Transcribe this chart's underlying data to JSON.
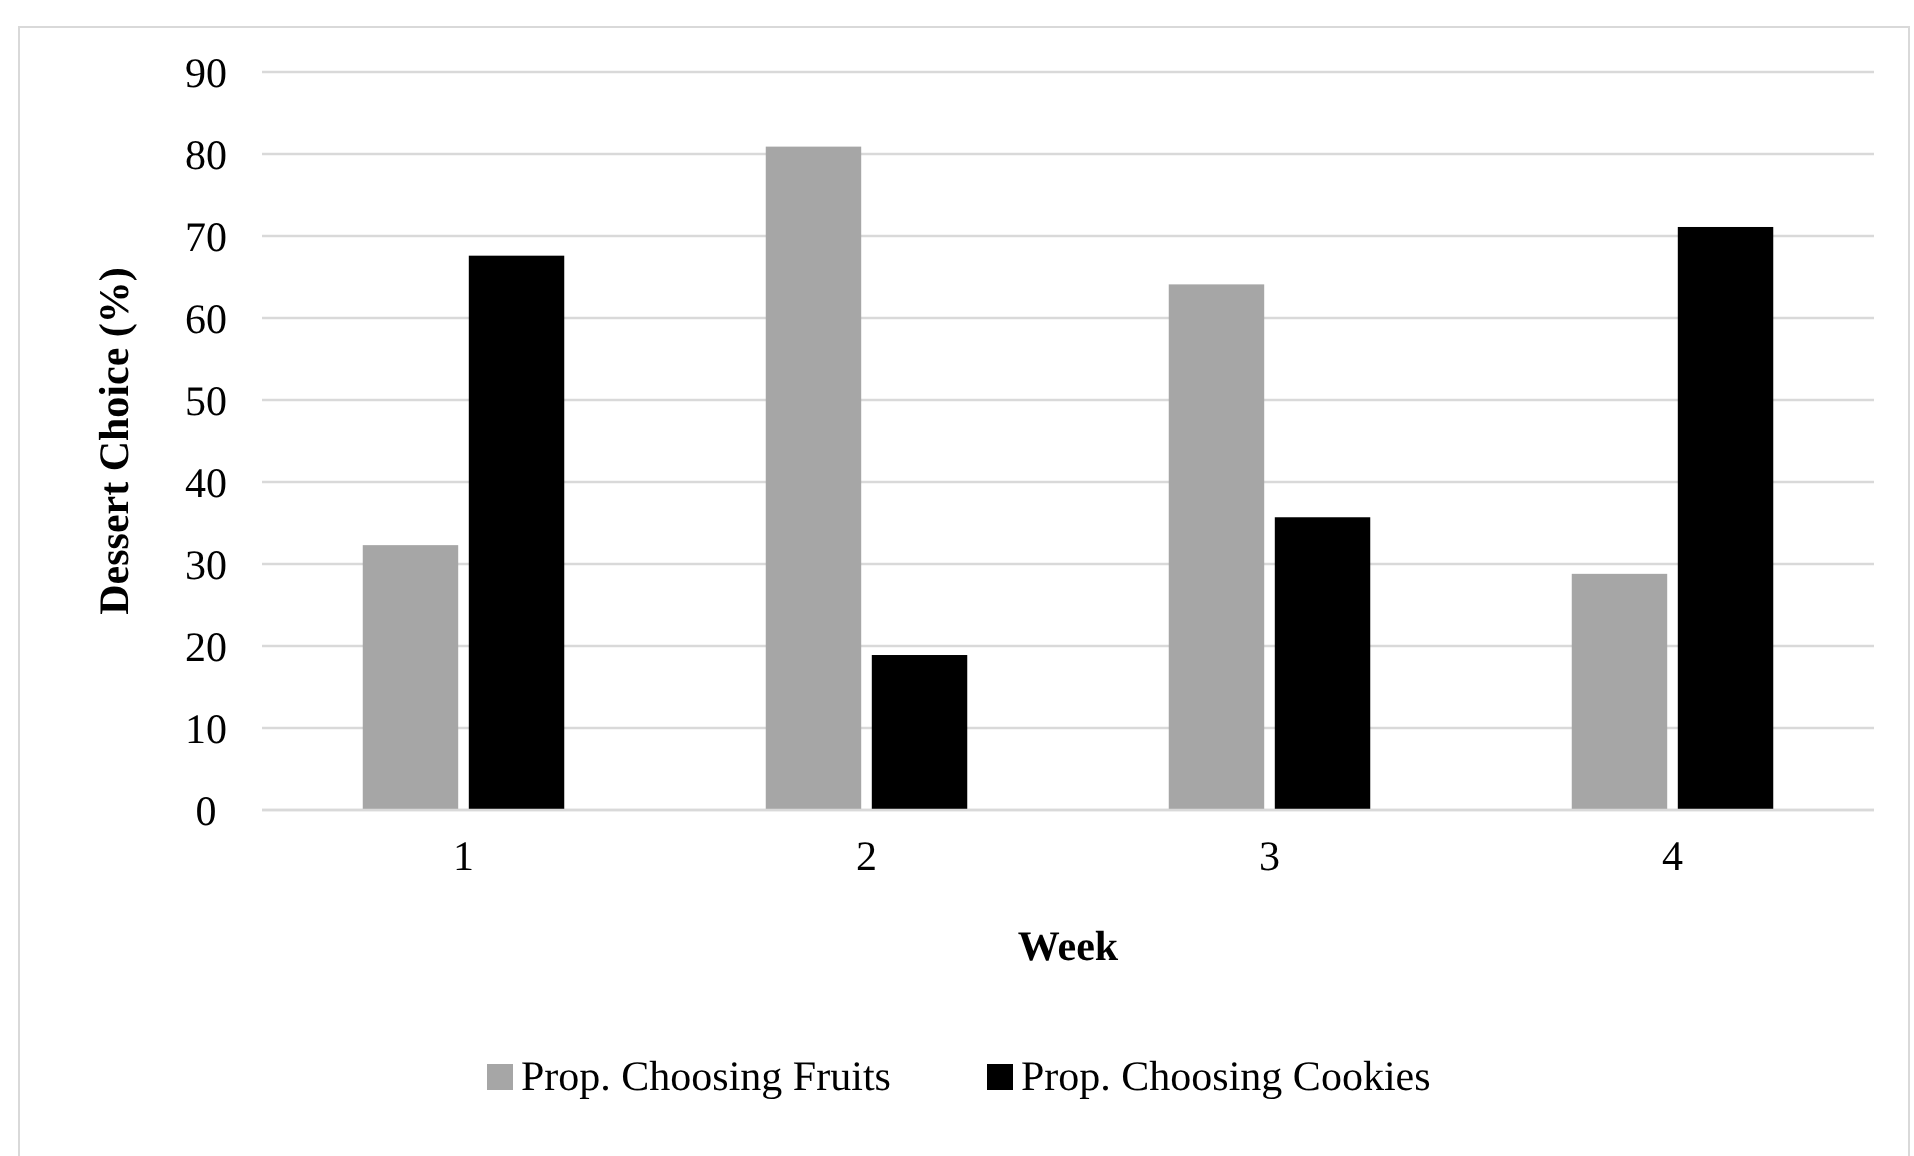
{
  "chart_data": {
    "type": "bar",
    "xlabel": "Week",
    "ylabel": "Dessert Choice (%)",
    "categories": [
      "1",
      "2",
      "3",
      "4"
    ],
    "series": [
      {
        "name": "Prop. Choosing Fruits",
        "color": "#a6a6a6",
        "values": [
          32.3,
          80.9,
          64.1,
          28.8
        ]
      },
      {
        "name": "Prop. Choosing Cookies",
        "color": "#000000",
        "values": [
          67.6,
          18.9,
          35.7,
          71.1
        ]
      }
    ],
    "ylim": [
      0,
      90
    ],
    "yticks": [
      0,
      10,
      20,
      30,
      40,
      50,
      60,
      70,
      80,
      90
    ],
    "grid": "y",
    "legend": "bottom"
  }
}
